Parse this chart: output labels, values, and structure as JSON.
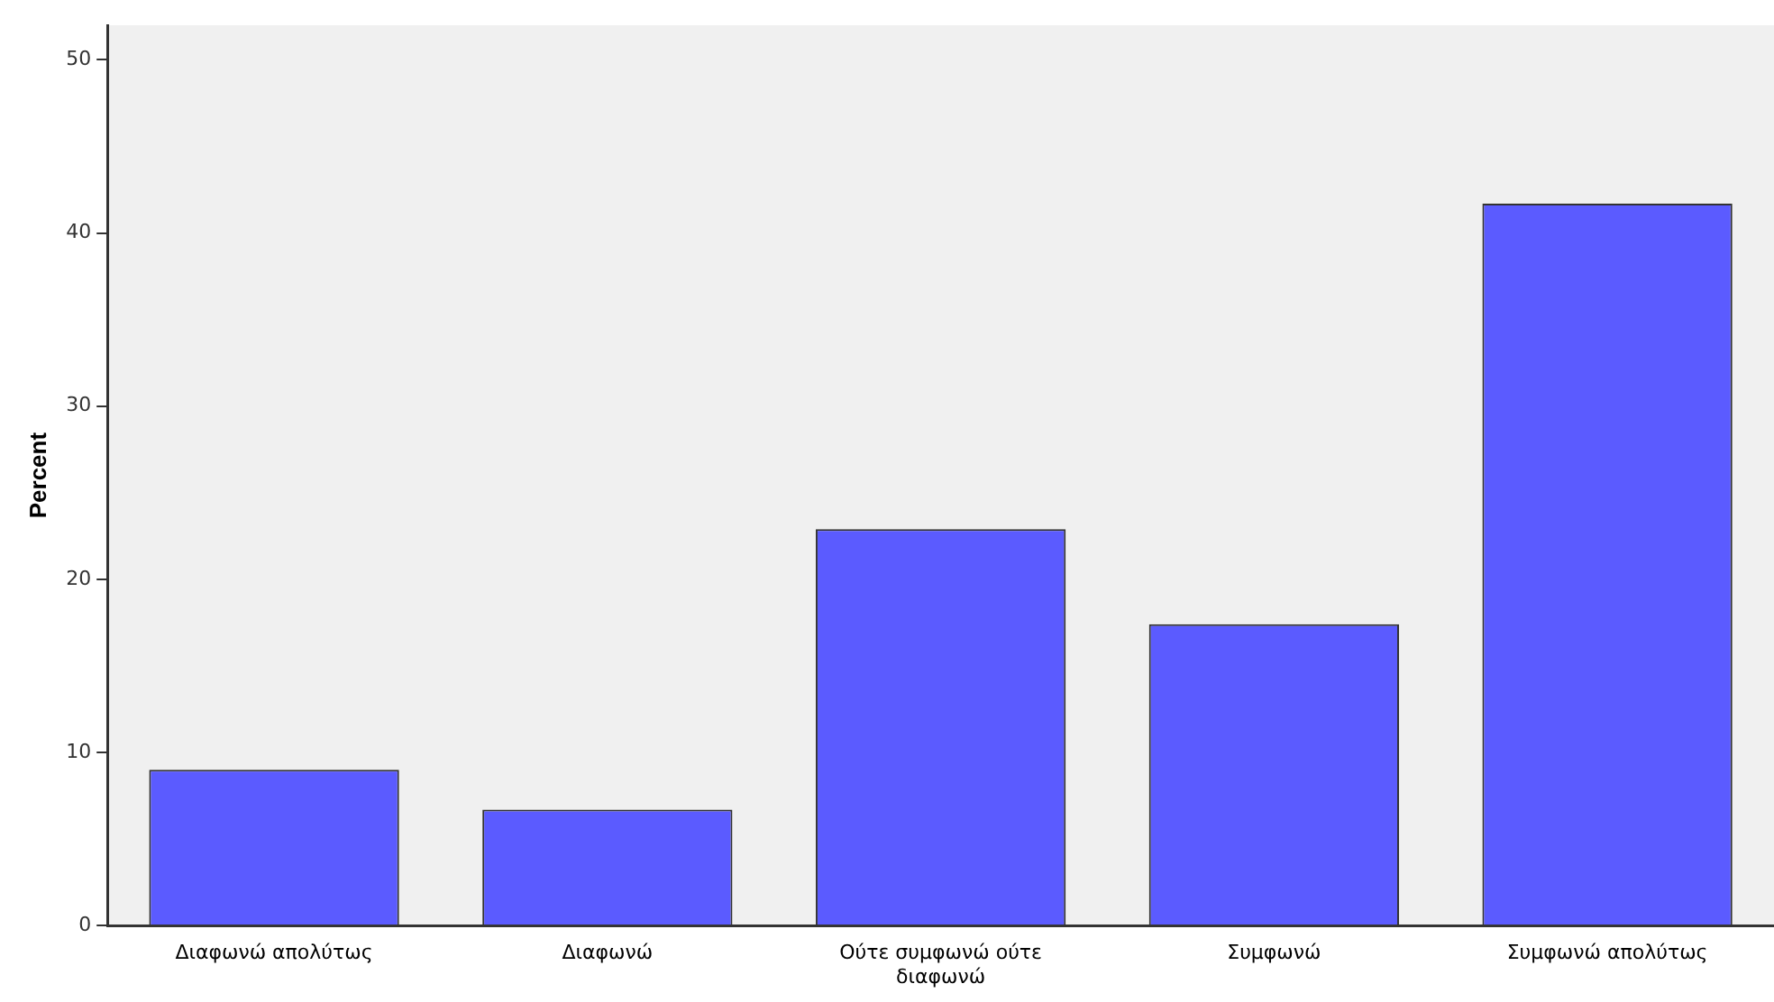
{
  "chart_data": {
    "type": "bar",
    "ylabel": "Percent",
    "categories": [
      "Διαφωνώ απολύτως",
      "Διαφωνώ",
      "Ούτε συμφωνώ ούτε διαφωνώ",
      "Συμφωνώ",
      "Συμφωνώ απολύτως"
    ],
    "values": [
      9.0,
      6.7,
      22.9,
      17.4,
      41.7
    ],
    "color": "#5b5bff",
    "ylim": [
      0,
      52
    ],
    "yticks": [
      0,
      10,
      20,
      30,
      40,
      50
    ],
    "grid": false,
    "legend": false
  }
}
